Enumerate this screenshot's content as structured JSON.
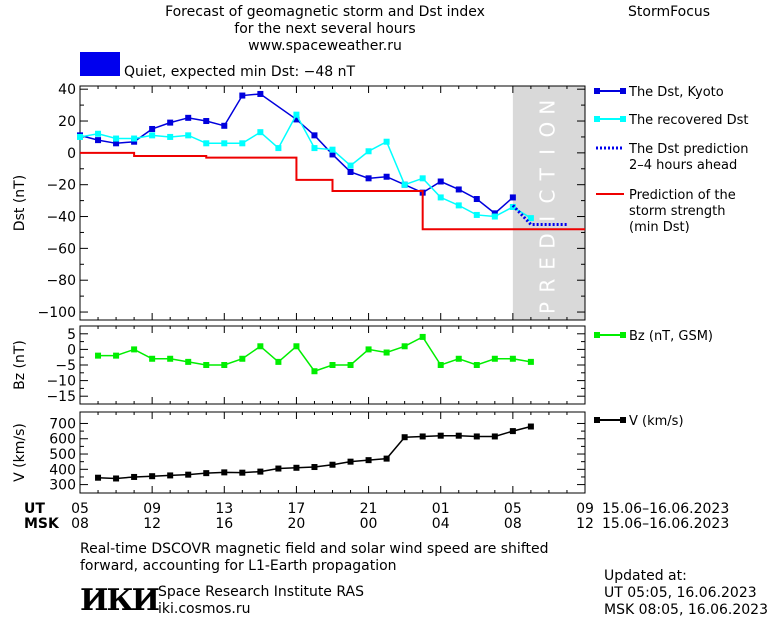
{
  "header": {
    "title_lines": [
      "Forecast of geomagnetic storm and Dst index",
      "for the next several hours",
      "www.spaceweather.ru"
    ],
    "brand": "StormFocus",
    "status_color": "#0000ee",
    "status_text": "Quiet, expected min Dst: −48 nT"
  },
  "chart_data": [
    {
      "type": "line",
      "ylabel": "Dst (nT)",
      "ylim": [
        -105,
        42
      ],
      "yticks": [
        40,
        20,
        0,
        -20,
        -40,
        -60,
        -80,
        -100
      ],
      "x_hours_utc_from": "05:00 15.06.2023",
      "prediction_band": {
        "label": "PREDICTION",
        "from_hour": 29,
        "to_hour": 33
      },
      "series": [
        {
          "name": "The Dst, Kyoto",
          "color": "#0000dd",
          "x": [
            5,
            6,
            7,
            8,
            9,
            10,
            11,
            12,
            13,
            14,
            15,
            17,
            18,
            19,
            20,
            21,
            22,
            23,
            24,
            25,
            26,
            27,
            28,
            29
          ],
          "y": [
            11,
            8,
            6,
            7,
            15,
            19,
            22,
            20,
            17,
            36,
            37,
            21,
            11,
            -1,
            -12,
            -16,
            -15,
            -20,
            -25,
            -18,
            -23,
            -29,
            -38,
            -28
          ]
        },
        {
          "name": "The recovered Dst",
          "color": "#00ffff",
          "x": [
            5,
            6,
            7,
            8,
            9,
            10,
            11,
            12,
            13,
            14,
            15,
            16,
            17,
            18,
            19,
            20,
            21,
            22,
            23,
            24,
            25,
            26,
            27,
            28,
            29,
            30
          ],
          "y": [
            10,
            12,
            9,
            9,
            11,
            10,
            11,
            6,
            6,
            6,
            13,
            3,
            24,
            3,
            2,
            -8,
            1,
            7,
            -20,
            -16,
            -28,
            -33,
            -39,
            -40,
            -34,
            -41
          ]
        },
        {
          "name": "The Dst prediction",
          "name_line2": "2–4 hours ahead",
          "color": "#0000ee",
          "x": [
            29,
            29.5,
            30,
            31,
            32
          ],
          "y": [
            -33,
            -39,
            -45,
            -45,
            -45
          ]
        },
        {
          "name": "Prediction of the",
          "name_line2": "storm strength",
          "name_line3": "(min Dst)",
          "color": "#ee0000",
          "x": [
            5,
            6,
            7,
            8,
            9,
            10,
            11,
            12,
            13,
            14,
            15,
            16,
            17,
            18,
            19,
            20,
            21,
            22,
            23,
            24,
            25,
            26,
            27,
            28,
            29,
            30,
            31,
            32,
            33
          ],
          "y": [
            0,
            0,
            0,
            -2,
            -2,
            -2,
            -2,
            -3,
            -3,
            -3,
            -3,
            -3,
            -17,
            -17,
            -24,
            -24,
            -24,
            -24,
            -24,
            -48,
            -48,
            -48,
            -48,
            -48,
            -48,
            -48,
            -48,
            -48,
            -48
          ]
        }
      ]
    },
    {
      "type": "line",
      "ylabel": "Bz (nT)",
      "ylim": [
        -17.5,
        7.5
      ],
      "yticks": [
        5,
        0,
        -5,
        -10,
        -15
      ],
      "series": [
        {
          "name": "Bz (nT, GSM)",
          "color": "#00ee00",
          "x": [
            6,
            7,
            8,
            9,
            10,
            11,
            12,
            13,
            14,
            15,
            16,
            17,
            18,
            19,
            20,
            21,
            22,
            23,
            24,
            25,
            26,
            27,
            28,
            29,
            30
          ],
          "y": [
            -2,
            -2,
            0,
            -3,
            -3,
            -4,
            -5,
            -5,
            -3,
            1,
            -4,
            1,
            -7,
            -5,
            -5,
            0,
            -1,
            1,
            4,
            -5,
            -3,
            -5,
            -3,
            -3,
            -4
          ]
        }
      ]
    },
    {
      "type": "line",
      "ylabel": "V (km/s)",
      "ylim": [
        245,
        775
      ],
      "yticks": [
        700,
        600,
        500,
        400,
        300
      ],
      "series": [
        {
          "name": "V (km/s)",
          "color": "#000000",
          "x": [
            6,
            7,
            8,
            9,
            10,
            11,
            12,
            13,
            14,
            15,
            16,
            17,
            18,
            19,
            20,
            21,
            22,
            23,
            24,
            25,
            26,
            27,
            28,
            29,
            30
          ],
          "y": [
            345,
            340,
            350,
            355,
            360,
            365,
            375,
            380,
            378,
            385,
            405,
            410,
            415,
            430,
            450,
            460,
            470,
            610,
            615,
            620,
            620,
            615,
            615,
            650,
            680
          ]
        }
      ]
    }
  ],
  "time_axis": {
    "ut_label": "UT",
    "msk_label": "MSK",
    "ut_ticks": [
      "05",
      "09",
      "13",
      "17",
      "21",
      "01",
      "05",
      "09"
    ],
    "msk_ticks": [
      "08",
      "12",
      "16",
      "20",
      "00",
      "04",
      "08",
      "12"
    ],
    "ut_range": "15.06–16.06.2023",
    "msk_range": "15.06–16.06.2023"
  },
  "footer": {
    "note_line1": "Real-time DSCOVR magnetic field and solar wind speed are shifted",
    "note_line2": "forward, accounting for L1-Earth propagation",
    "logo_text": "ИКИ",
    "institute": "Space Research Institute RAS",
    "website": "iki.cosmos.ru",
    "updated_label": "Updated at:",
    "updated_ut": "UT   05:05, 16.06.2023",
    "updated_msk": "MSK 08:05, 16.06.2023"
  }
}
